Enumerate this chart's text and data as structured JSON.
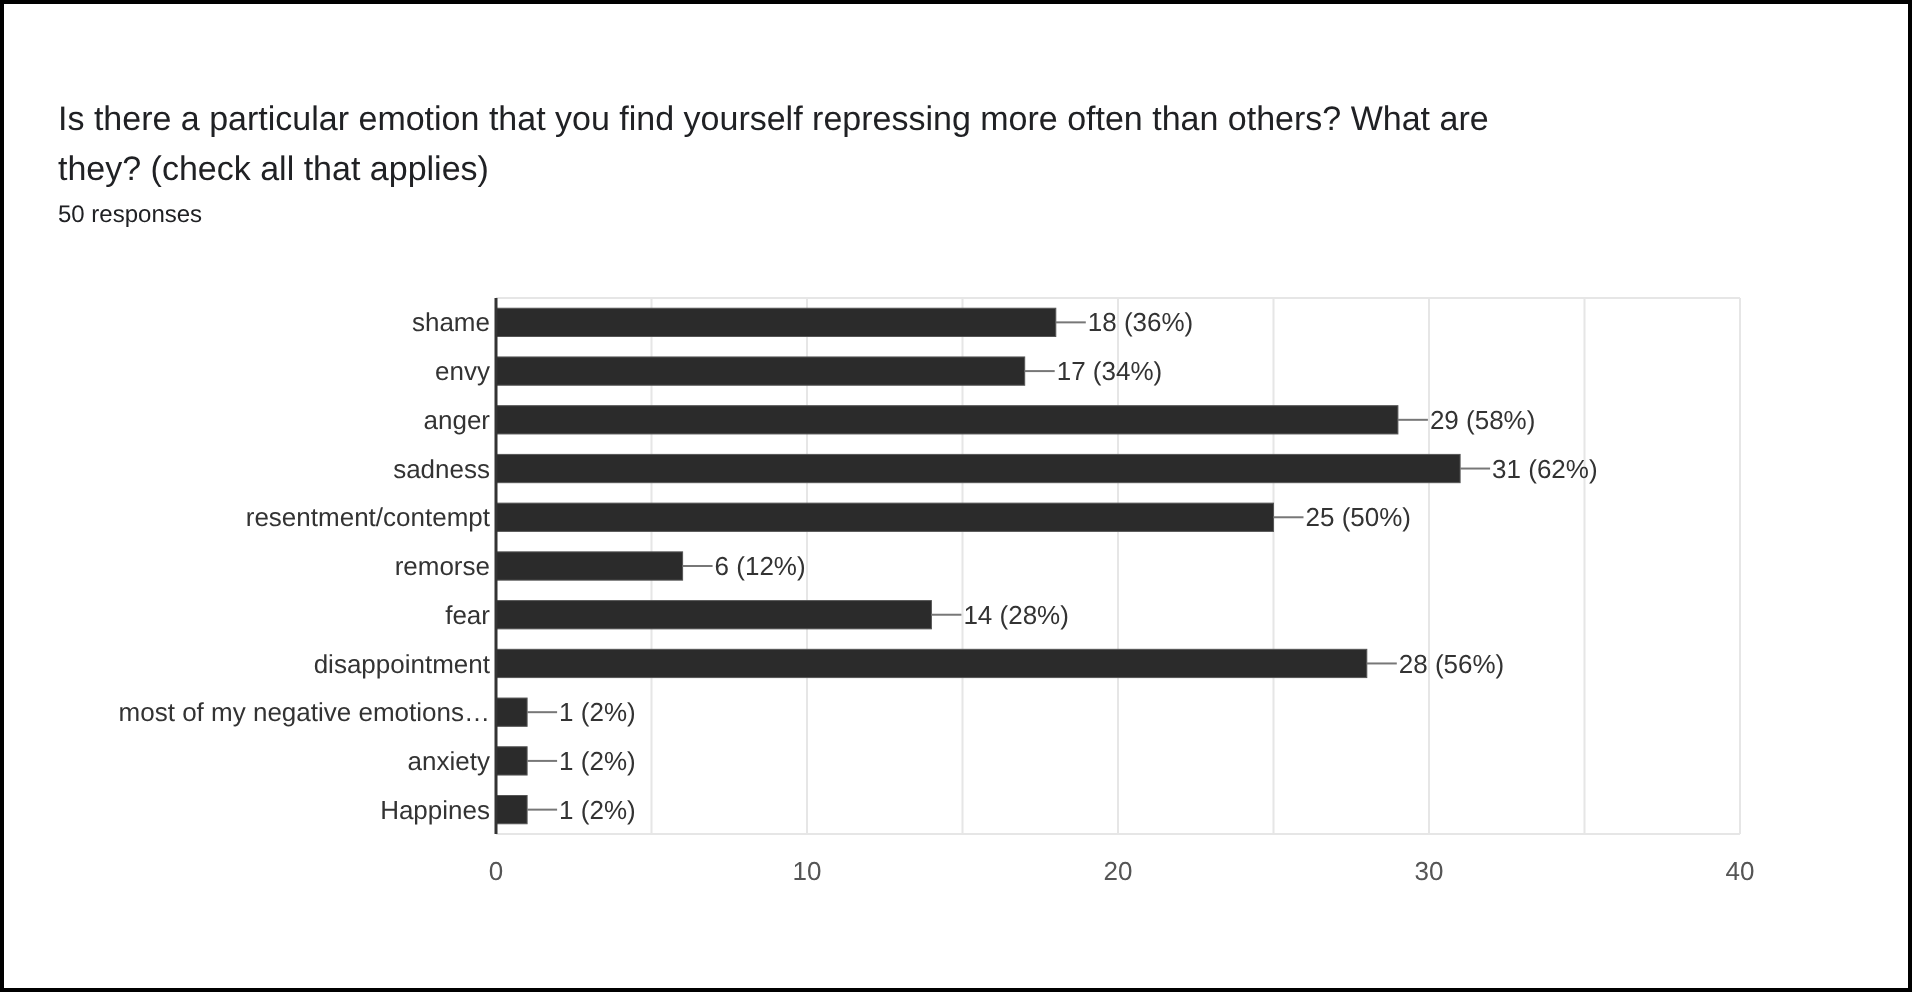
{
  "chart_data": {
    "type": "bar",
    "orientation": "horizontal",
    "title": "Is there a particular emotion that you find yourself repressing more often than others? What are they? (check all that applies)",
    "subtitle": "50 responses",
    "categories": [
      "shame",
      "envy",
      "anger",
      "sadness",
      "resentment/contempt",
      "remorse",
      "fear",
      "disappointment",
      "most of my negative emotions…",
      "anxiety",
      "Happines"
    ],
    "values": [
      18,
      17,
      29,
      31,
      25,
      6,
      14,
      28,
      1,
      1,
      1
    ],
    "value_labels": [
      "18 (36%)",
      "17 (34%)",
      "29 (58%)",
      "31 (62%)",
      "25 (50%)",
      "6 (12%)",
      "14 (28%)",
      "28 (56%)",
      "1 (2%)",
      "1 (2%)",
      "1 (2%)"
    ],
    "color": "#2b2b2b",
    "xlim": [
      0,
      40
    ],
    "xticks": [
      0,
      {
        "value": 5,
        "label": null
      },
      10,
      {
        "value": 15,
        "label": null
      },
      20,
      {
        "value": 25,
        "label": null
      },
      30,
      {
        "value": 35,
        "label": null
      },
      40
    ],
    "grid": "x"
  }
}
